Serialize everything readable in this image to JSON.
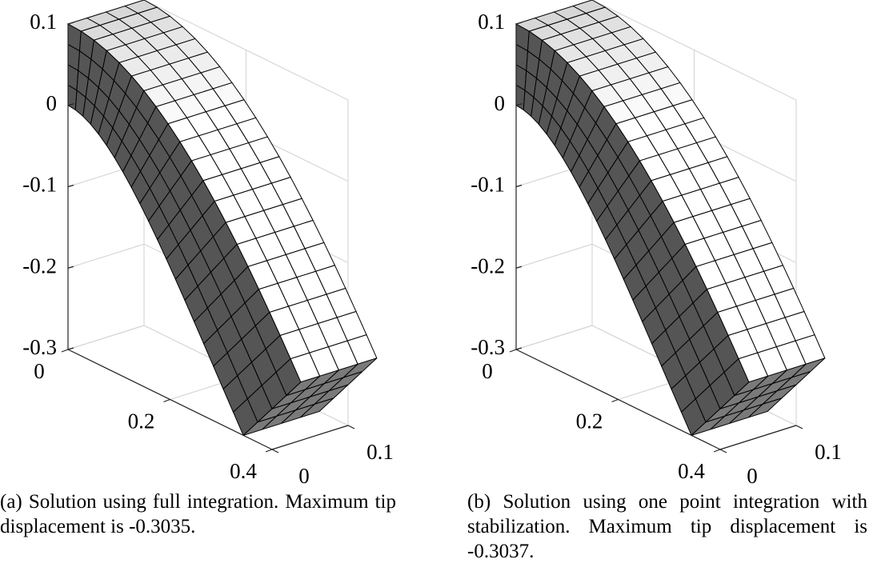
{
  "panels": [
    {
      "label": "(a)",
      "caption": "Solution using full integration. Maximum tip displacement is -0.3035.",
      "zlim": [
        -0.3,
        0.1
      ],
      "zticks": [
        0.1,
        0,
        -0.1,
        -0.2,
        -0.3
      ],
      "xlim": [
        0,
        0.4
      ],
      "xticks": [
        0,
        0.2,
        0.4
      ],
      "ylim": [
        0,
        0.1
      ],
      "yticks": [
        0,
        0.1
      ]
    },
    {
      "label": "(b)",
      "caption": "Solution using one point integration with stabilization. Maximum tip displacement is -0.3037.",
      "zlim": [
        -0.3,
        0.1
      ],
      "zticks": [
        0.1,
        0,
        -0.1,
        -0.2,
        -0.3
      ],
      "xlim": [
        0,
        0.4
      ],
      "xticks": [
        0,
        0.2,
        0.4
      ],
      "ylim": [
        0,
        0.1
      ],
      "yticks": [
        0,
        0.1
      ]
    }
  ]
}
